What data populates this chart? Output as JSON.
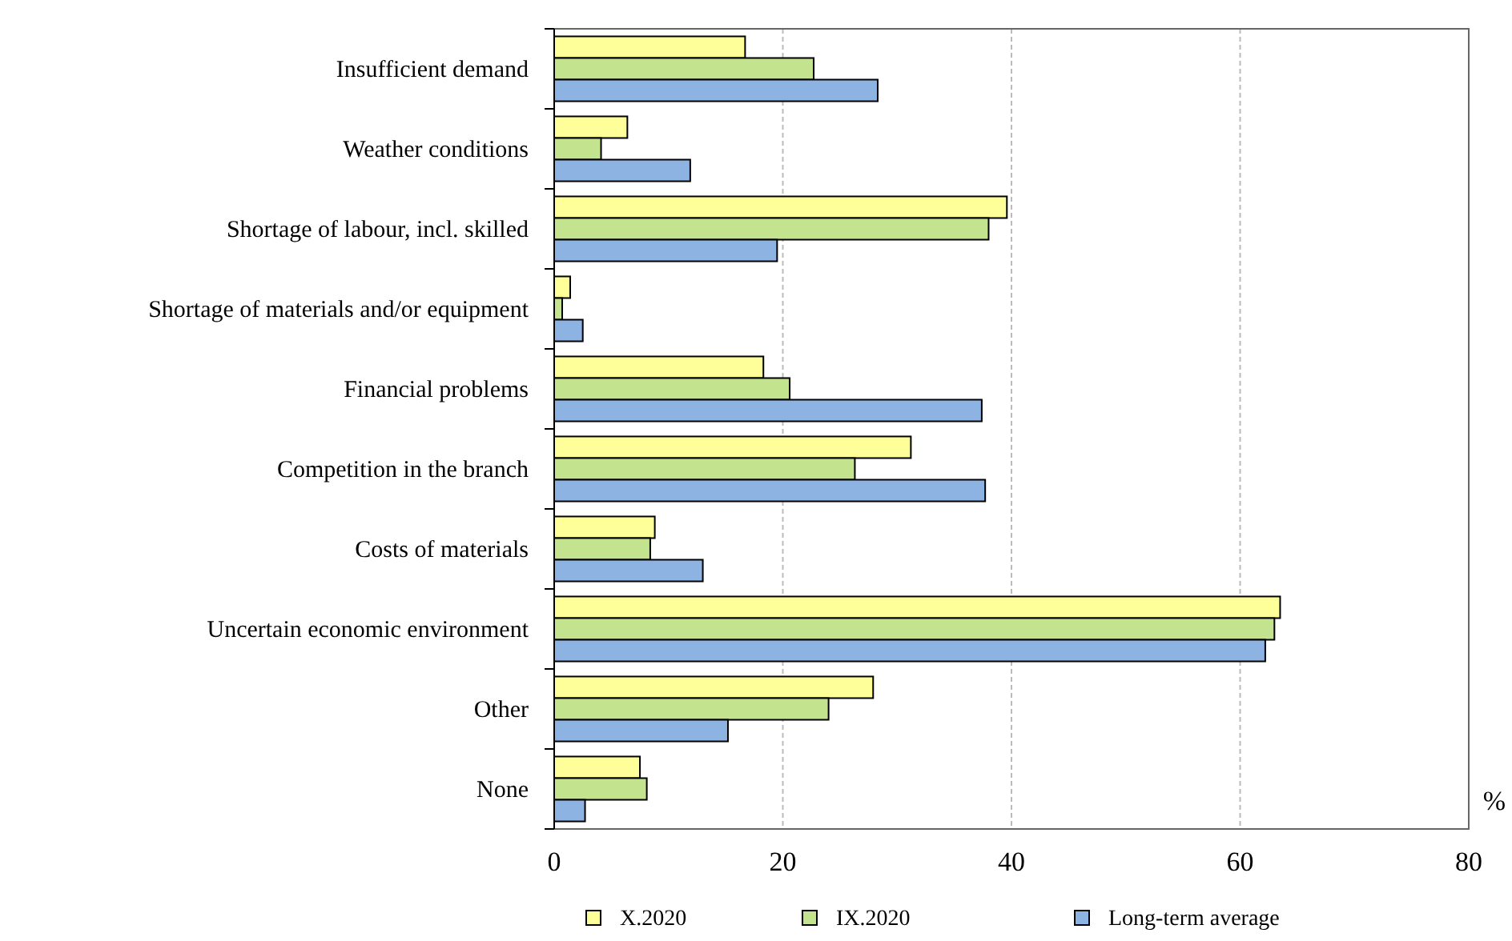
{
  "chart_data": {
    "type": "bar",
    "orientation": "horizontal",
    "xlabel": "%",
    "categories": [
      "Insufficient demand",
      "Weather conditions",
      "Shortage of labour, incl. skilled",
      "Shortage of materials and/or equipment",
      "Financial problems",
      "Competition in the branch",
      "Costs of materials",
      "Uncertain economic environment",
      "Other",
      "None"
    ],
    "series": [
      {
        "name": "X.2020",
        "color": "#ffff99",
        "values": [
          16.7,
          6.4,
          39.6,
          1.4,
          18.3,
          31.2,
          8.8,
          63.5,
          27.9,
          7.5
        ]
      },
      {
        "name": "IX.2020",
        "color": "#c4e38f",
        "values": [
          22.7,
          4.1,
          38.0,
          0.7,
          20.6,
          26.3,
          8.4,
          63.0,
          24.0,
          8.1
        ]
      },
      {
        "name": "Long-term average",
        "color": "#8db3e2",
        "values": [
          28.3,
          11.9,
          19.5,
          2.5,
          37.4,
          37.7,
          13.0,
          62.2,
          15.2,
          2.7
        ]
      }
    ],
    "xlim": [
      0,
      80
    ],
    "xticks": [
      0,
      20,
      40,
      60,
      80
    ],
    "grid": "x",
    "legend": "bottom"
  }
}
